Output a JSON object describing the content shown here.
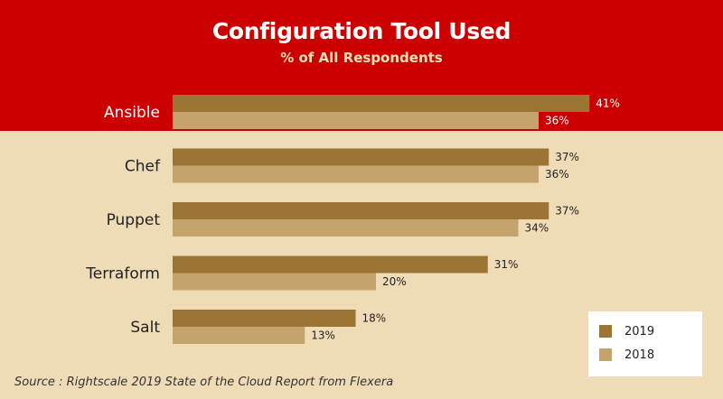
{
  "chart_data": {
    "type": "bar",
    "orientation": "horizontal",
    "title": "Configuration Tool Used",
    "subtitle": "%  of All Respondents",
    "categories": [
      "Ansible",
      "Chef",
      "Puppet",
      "Terraform",
      "Salt"
    ],
    "series": [
      {
        "name": "2019",
        "values": [
          41,
          37,
          37,
          31,
          18
        ],
        "labels": [
          "41%",
          "37%",
          "37%",
          "31%",
          "18%"
        ],
        "color": "#9c7434"
      },
      {
        "name": "2018",
        "values": [
          36,
          36,
          34,
          20,
          13
        ],
        "labels": [
          "36%",
          "36%",
          "34%",
          "20%",
          "13%"
        ],
        "color": "#c4a46c"
      }
    ],
    "xlim": [
      0,
      60
    ],
    "grid": false,
    "legend_position": "bottom-right",
    "source": "Source : Rightscale 2019 State of the Cloud Report from Flexera"
  },
  "colors": {
    "header_background": "#cc0000",
    "page_background": "#efdcb6"
  }
}
